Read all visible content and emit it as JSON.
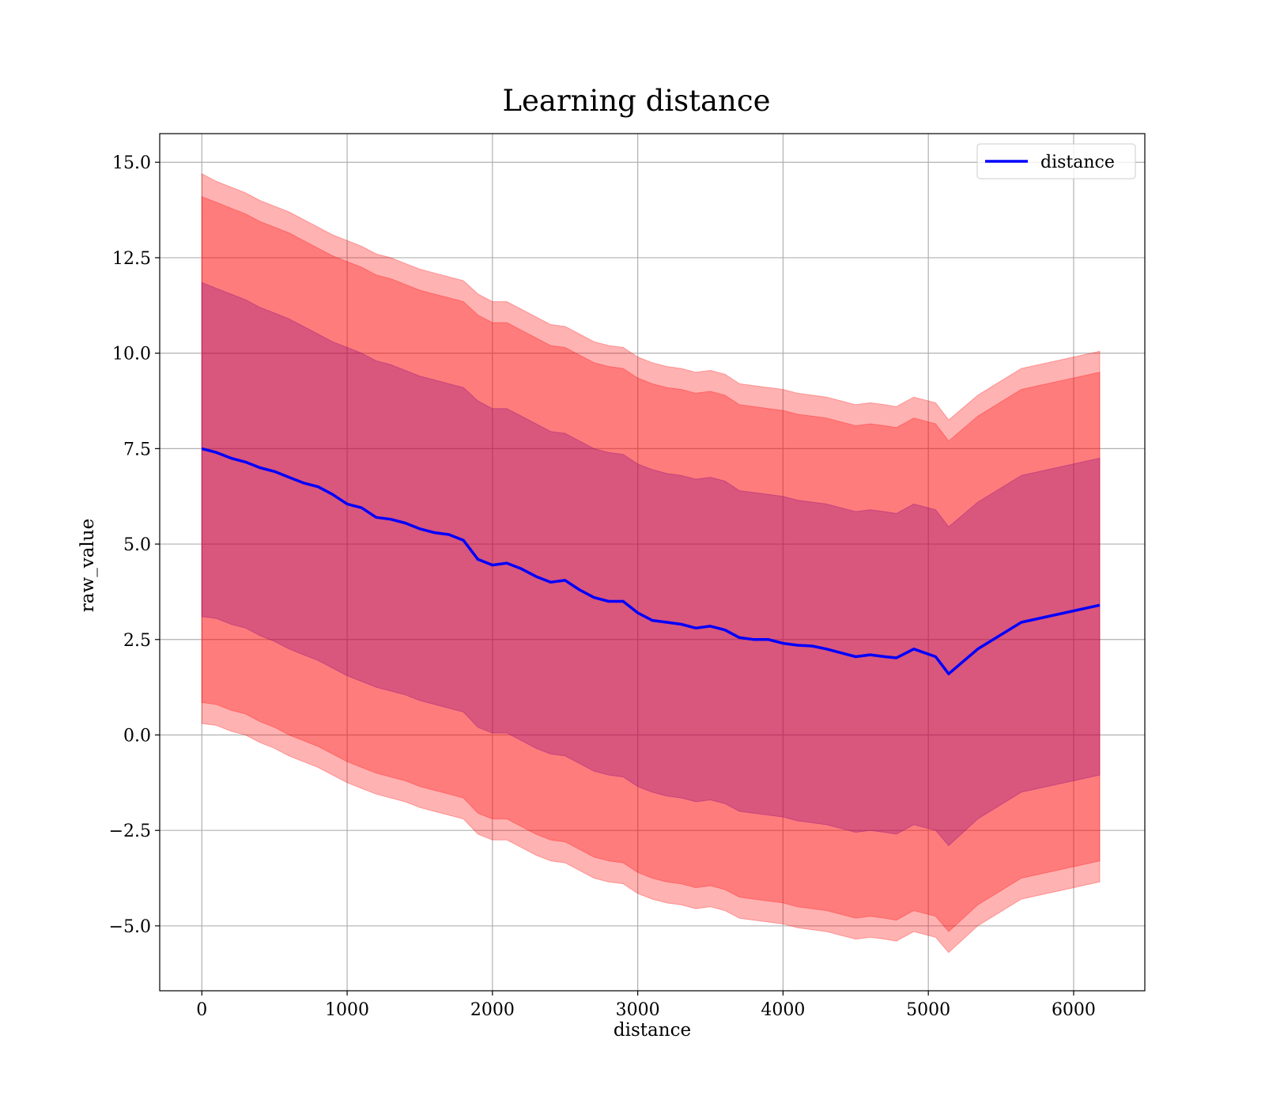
{
  "chart_data": {
    "type": "area",
    "title": "Learning distance",
    "xlabel": "distance",
    "ylabel": "raw_value",
    "xlim": [
      -290,
      6490
    ],
    "ylim": [
      -6.7,
      15.75
    ],
    "xticks": [
      0,
      1000,
      2000,
      3000,
      4000,
      5000,
      6000
    ],
    "xtick_labels": [
      "0",
      "1000",
      "2000",
      "3000",
      "4000",
      "5000",
      "6000"
    ],
    "yticks": [
      -5.0,
      -2.5,
      0.0,
      2.5,
      5.0,
      7.5,
      10.0,
      12.5,
      15.0
    ],
    "ytick_labels": [
      "−5.0",
      "−2.5",
      "0.0",
      "2.5",
      "5.0",
      "7.5",
      "10.0",
      "12.5",
      "15.0"
    ],
    "grid": true,
    "legend": {
      "position": "top-right",
      "entries": [
        "distance"
      ]
    },
    "x": [
      0,
      100,
      200,
      300,
      400,
      500,
      600,
      700,
      800,
      900,
      1000,
      1100,
      1200,
      1300,
      1400,
      1500,
      1600,
      1700,
      1800,
      1900,
      2000,
      2100,
      2200,
      2300,
      2400,
      2500,
      2600,
      2700,
      2800,
      2900,
      3000,
      3100,
      3200,
      3300,
      3400,
      3500,
      3600,
      3700,
      3800,
      3900,
      4000,
      4100,
      4200,
      4300,
      4400,
      4500,
      4600,
      4700,
      4780,
      4900,
      5050,
      5140,
      5340,
      5640,
      6180
    ],
    "series": [
      {
        "name": "distance",
        "color": "#0000ff",
        "values": [
          7.5,
          7.4,
          7.25,
          7.15,
          7.0,
          6.9,
          6.75,
          6.6,
          6.5,
          6.3,
          6.05,
          5.95,
          5.7,
          5.65,
          5.55,
          5.4,
          5.3,
          5.25,
          5.1,
          4.6,
          4.45,
          4.5,
          4.35,
          4.15,
          4.0,
          4.05,
          3.8,
          3.6,
          3.5,
          3.5,
          3.2,
          3.0,
          2.95,
          2.9,
          2.8,
          2.85,
          2.75,
          2.55,
          2.5,
          2.5,
          2.4,
          2.35,
          2.33,
          2.25,
          2.15,
          2.05,
          2.1,
          2.05,
          2.02,
          2.25,
          2.05,
          1.6,
          2.25,
          2.95,
          3.4
        ]
      }
    ],
    "bands": [
      {
        "color": "#ff0000",
        "opacity": 0.3,
        "upper": [
          14.7,
          14.5,
          14.35,
          14.2,
          14.0,
          13.85,
          13.7,
          13.5,
          13.3,
          13.1,
          12.95,
          12.8,
          12.6,
          12.5,
          12.35,
          12.2,
          12.1,
          12.0,
          11.9,
          11.55,
          11.35,
          11.35,
          11.15,
          10.95,
          10.75,
          10.7,
          10.5,
          10.3,
          10.2,
          10.15,
          9.9,
          9.75,
          9.65,
          9.6,
          9.5,
          9.55,
          9.45,
          9.2,
          9.15,
          9.1,
          9.05,
          8.95,
          8.9,
          8.85,
          8.75,
          8.65,
          8.7,
          8.65,
          8.6,
          8.85,
          8.7,
          8.25,
          8.9,
          9.6,
          10.05
        ],
        "lower": [
          0.3,
          0.25,
          0.1,
          0.0,
          -0.2,
          -0.35,
          -0.55,
          -0.7,
          -0.85,
          -1.05,
          -1.25,
          -1.4,
          -1.55,
          -1.65,
          -1.75,
          -1.9,
          -2.0,
          -2.1,
          -2.2,
          -2.6,
          -2.75,
          -2.75,
          -2.95,
          -3.15,
          -3.3,
          -3.35,
          -3.55,
          -3.75,
          -3.85,
          -3.9,
          -4.15,
          -4.3,
          -4.4,
          -4.45,
          -4.55,
          -4.5,
          -4.6,
          -4.8,
          -4.85,
          -4.9,
          -4.95,
          -5.05,
          -5.1,
          -5.15,
          -5.25,
          -5.35,
          -5.3,
          -5.35,
          -5.4,
          -5.15,
          -5.3,
          -5.7,
          -5.0,
          -4.3,
          -3.85
        ]
      },
      {
        "color": "#ff0000",
        "opacity": 0.3,
        "upper": [
          14.1,
          13.95,
          13.8,
          13.65,
          13.45,
          13.3,
          13.15,
          12.95,
          12.75,
          12.55,
          12.4,
          12.25,
          12.05,
          11.95,
          11.8,
          11.65,
          11.55,
          11.45,
          11.35,
          11.0,
          10.8,
          10.8,
          10.6,
          10.4,
          10.2,
          10.15,
          9.95,
          9.75,
          9.65,
          9.6,
          9.35,
          9.2,
          9.1,
          9.05,
          8.95,
          9.0,
          8.9,
          8.65,
          8.6,
          8.55,
          8.5,
          8.4,
          8.35,
          8.3,
          8.2,
          8.1,
          8.15,
          8.1,
          8.05,
          8.3,
          8.15,
          7.7,
          8.35,
          9.05,
          9.5
        ],
        "lower": [
          0.85,
          0.8,
          0.65,
          0.55,
          0.35,
          0.2,
          0.0,
          -0.15,
          -0.3,
          -0.5,
          -0.7,
          -0.85,
          -1.0,
          -1.1,
          -1.2,
          -1.35,
          -1.45,
          -1.55,
          -1.65,
          -2.05,
          -2.2,
          -2.2,
          -2.4,
          -2.6,
          -2.75,
          -2.8,
          -3.0,
          -3.2,
          -3.3,
          -3.35,
          -3.6,
          -3.75,
          -3.85,
          -3.9,
          -4.0,
          -3.95,
          -4.05,
          -4.25,
          -4.3,
          -4.35,
          -4.4,
          -4.5,
          -4.55,
          -4.6,
          -4.7,
          -4.8,
          -4.75,
          -4.8,
          -4.85,
          -4.6,
          -4.75,
          -5.15,
          -4.45,
          -3.75,
          -3.3
        ]
      },
      {
        "color": "#800080",
        "opacity": 0.3,
        "upper": [
          11.85,
          11.7,
          11.55,
          11.4,
          11.2,
          11.05,
          10.9,
          10.7,
          10.5,
          10.3,
          10.15,
          10.0,
          9.8,
          9.7,
          9.55,
          9.4,
          9.3,
          9.2,
          9.1,
          8.75,
          8.55,
          8.55,
          8.35,
          8.15,
          7.95,
          7.9,
          7.7,
          7.5,
          7.4,
          7.35,
          7.1,
          6.95,
          6.85,
          6.8,
          6.7,
          6.75,
          6.65,
          6.4,
          6.35,
          6.3,
          6.25,
          6.15,
          6.1,
          6.05,
          5.95,
          5.85,
          5.9,
          5.85,
          5.8,
          6.05,
          5.9,
          5.45,
          6.1,
          6.8,
          7.25
        ],
        "lower": [
          3.1,
          3.05,
          2.9,
          2.8,
          2.6,
          2.45,
          2.25,
          2.1,
          1.95,
          1.75,
          1.55,
          1.4,
          1.25,
          1.15,
          1.05,
          0.9,
          0.8,
          0.7,
          0.6,
          0.2,
          0.05,
          0.05,
          -0.15,
          -0.35,
          -0.5,
          -0.55,
          -0.75,
          -0.95,
          -1.05,
          -1.1,
          -1.35,
          -1.5,
          -1.6,
          -1.65,
          -1.75,
          -1.7,
          -1.8,
          -2.0,
          -2.05,
          -2.1,
          -2.15,
          -2.25,
          -2.3,
          -2.35,
          -2.45,
          -2.55,
          -2.5,
          -2.55,
          -2.6,
          -2.35,
          -2.5,
          -2.9,
          -2.2,
          -1.5,
          -1.05
        ]
      }
    ]
  }
}
